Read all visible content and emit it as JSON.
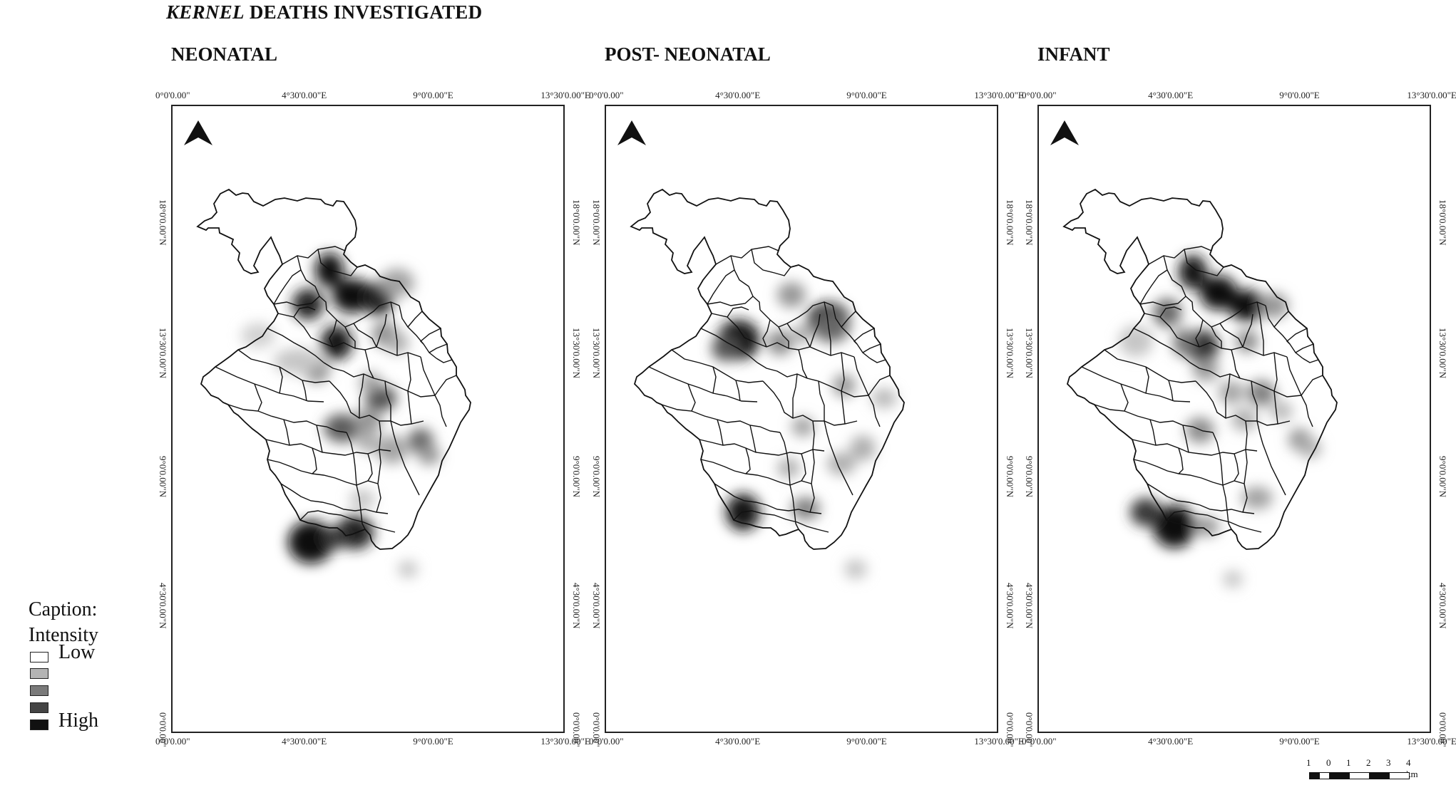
{
  "title": {
    "italic": "KERNEL",
    "rest": " DEATHS INVESTIGATED"
  },
  "panels": [
    {
      "name": "NEONATAL"
    },
    {
      "name": "POST- NEONATAL"
    },
    {
      "name": "INFANT"
    }
  ],
  "ticks": {
    "x": [
      "0°0'0.00\"",
      "4°30'0.00\"E",
      "9°0'0.00\"E",
      "13°30'0.00\"E"
    ],
    "y": [
      "18°0'0.00\"N",
      "13°30'0.00\"N",
      "9°0'0.00\"N",
      "4°30'0.00\"N",
      "0°0'0.00\""
    ]
  },
  "legend": {
    "caption": "Caption:",
    "subtitle": "Intensity",
    "low": "Low",
    "high": "High",
    "colors": [
      "#ffffff",
      "#b4b4b4",
      "#7a7a7a",
      "#444444",
      "#111111"
    ]
  },
  "scale": {
    "labels": [
      "1",
      "0",
      "1",
      "2",
      "3",
      "4 km"
    ]
  },
  "north_arrow": "north-arrow-icon"
}
